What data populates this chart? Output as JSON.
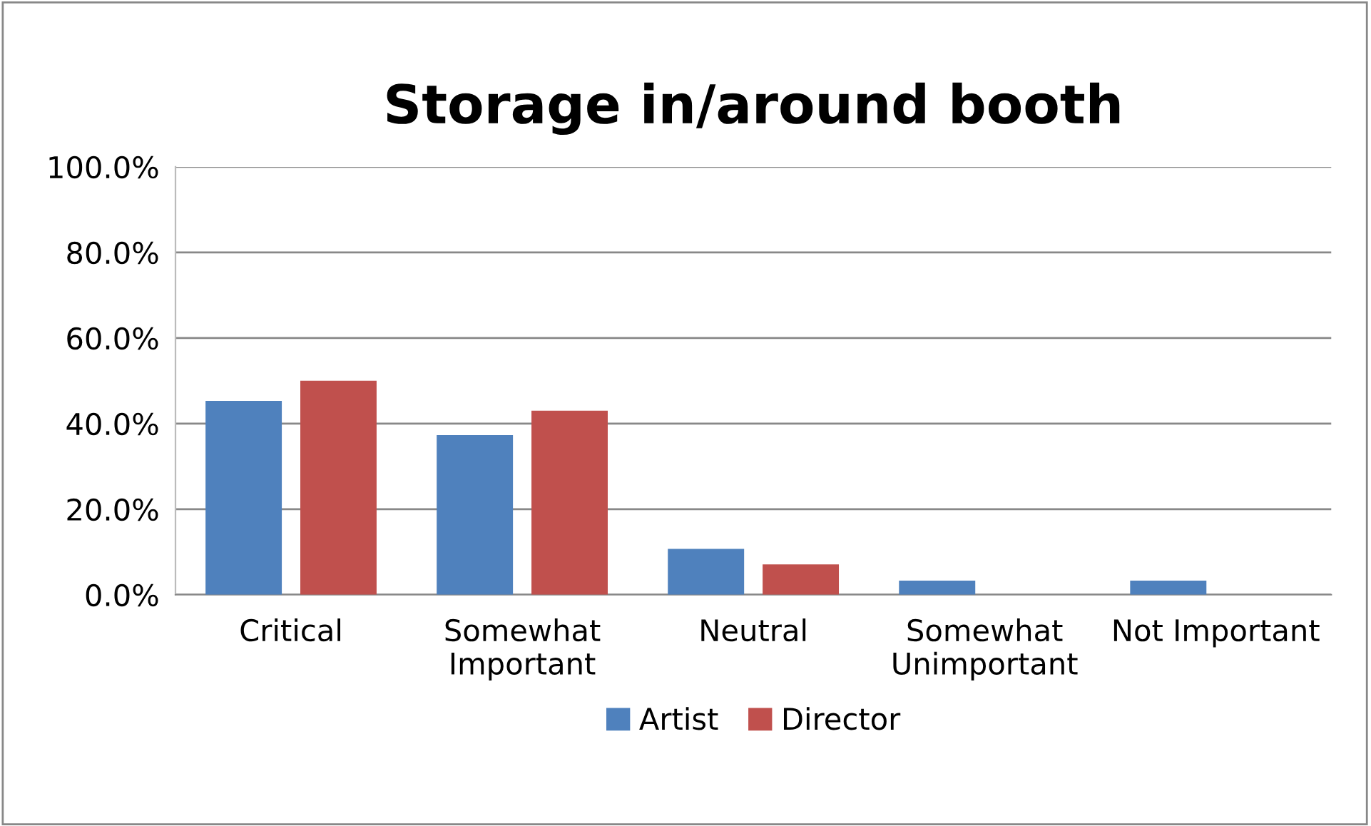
{
  "chart_data": {
    "type": "bar",
    "title": "Storage in/around booth",
    "categories": [
      "Critical",
      "Somewhat\nImportant",
      "Neutral",
      "Somewhat\nUnimportant",
      "Not Important"
    ],
    "series": [
      {
        "name": "Artist",
        "color": "#4f81bd",
        "values": [
          45.3,
          37.3,
          10.7,
          3.3,
          3.3
        ]
      },
      {
        "name": "Director",
        "color": "#c0504d",
        "values": [
          50.0,
          43.0,
          7.1,
          0,
          0
        ]
      }
    ],
    "ylim": [
      0,
      100
    ],
    "yticks": [
      {
        "value": 0,
        "label": "0.0%"
      },
      {
        "value": 20,
        "label": "20.0%"
      },
      {
        "value": 40,
        "label": "40.0%"
      },
      {
        "value": 60,
        "label": "60.0%"
      },
      {
        "value": 80,
        "label": "80.0%"
      },
      {
        "value": 100,
        "label": "100.0%"
      }
    ],
    "grid": "y",
    "legend": "bottom"
  }
}
